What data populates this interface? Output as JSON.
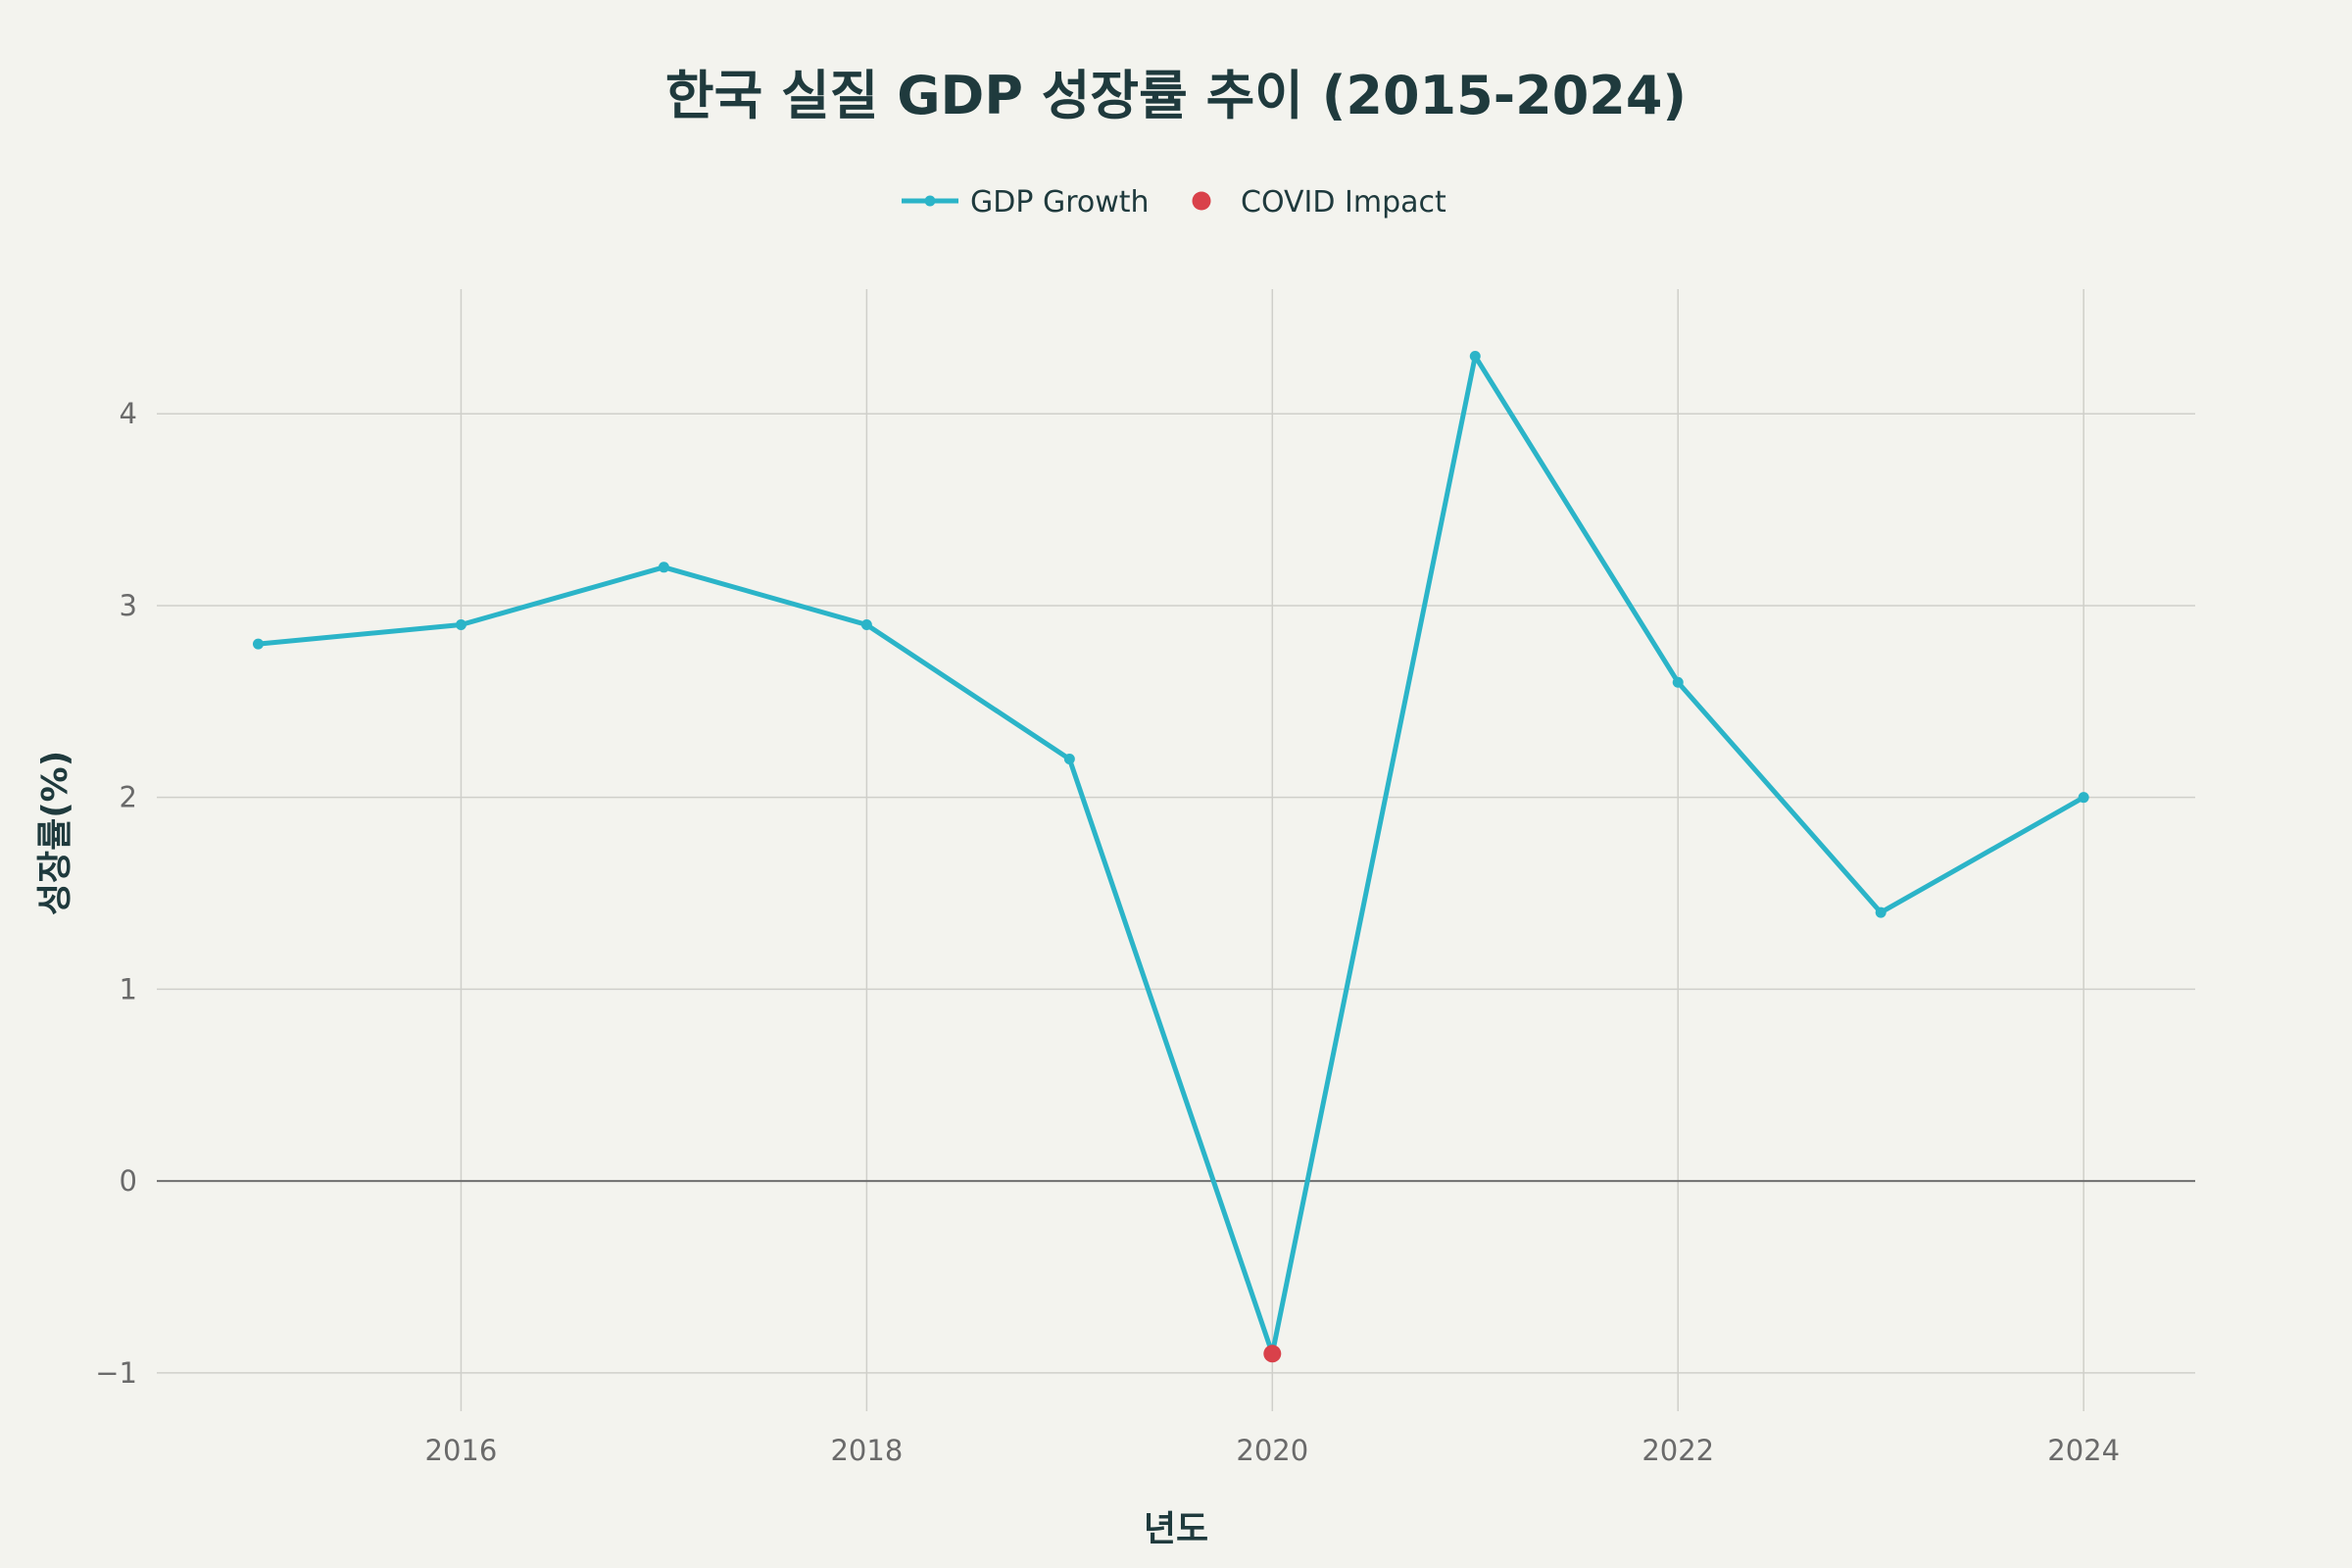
{
  "chart_data": {
    "type": "line",
    "title": "한국 실질 GDP 성장률 추이 (2015-2024)",
    "xlabel": "년도",
    "ylabel": "성장률(%)",
    "x": [
      2015,
      2016,
      2017,
      2018,
      2019,
      2020,
      2021,
      2022,
      2023,
      2024
    ],
    "xlim": [
      2014.5,
      2024.55
    ],
    "ylim": [
      -1.2,
      4.65
    ],
    "x_ticks": [
      2016,
      2018,
      2020,
      2022,
      2024
    ],
    "x_tick_labels": [
      "2016",
      "2018",
      "2020",
      "2022",
      "2024"
    ],
    "y_ticks": [
      -1,
      0,
      1,
      2,
      3,
      4
    ],
    "y_tick_labels": [
      "−1",
      "0",
      "1",
      "2",
      "3",
      "4"
    ],
    "grid": true,
    "zero_line": true,
    "legend_position": "top-center",
    "series": [
      {
        "name": "GDP Growth",
        "mode": "lines+markers",
        "color": "#2BB4C8",
        "values": [
          2.8,
          2.9,
          3.2,
          2.9,
          2.2,
          -0.9,
          4.3,
          2.6,
          1.4,
          2.0
        ]
      },
      {
        "name": "COVID Impact",
        "mode": "markers",
        "color": "#D9414A",
        "x": [
          2020
        ],
        "values": [
          -0.9
        ]
      }
    ]
  }
}
